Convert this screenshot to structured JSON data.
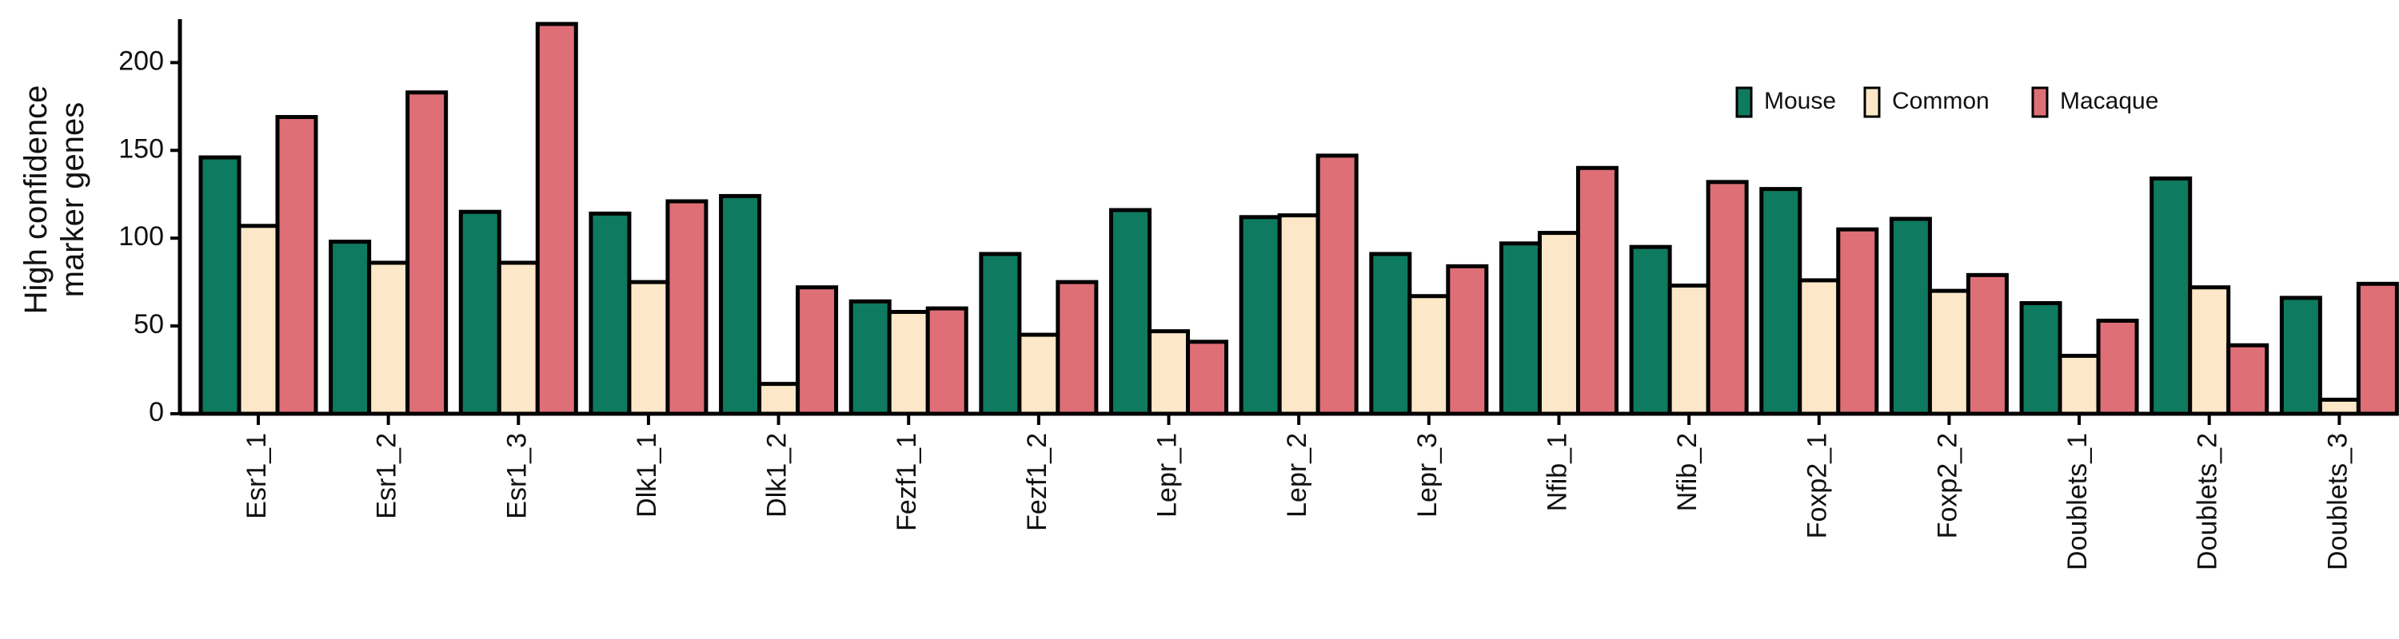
{
  "chart_data": {
    "type": "bar",
    "ylabel": [
      "High confidence",
      "marker genes"
    ],
    "ylim": [
      0,
      222
    ],
    "yticks": [
      0,
      50,
      100,
      150,
      200
    ],
    "categories": [
      "Esr1_1",
      "Esr1_2",
      "Esr1_3",
      "Dlk1_1",
      "Dlk1_2",
      "Fezf1_1",
      "Fezf1_2",
      "Lepr_1",
      "Lepr_2",
      "Lepr_3",
      "Nfib_1",
      "Nfib_2",
      "Foxp2_1",
      "Foxp2_2",
      "Doublets_1",
      "Doublets_2",
      "Doublets_3"
    ],
    "series": [
      {
        "name": "Mouse",
        "color": "#0e7a5f",
        "values": [
          146,
          98,
          115,
          114,
          124,
          64,
          91,
          116,
          112,
          91,
          97,
          95,
          128,
          111,
          63,
          134,
          66
        ]
      },
      {
        "name": "Common",
        "color": "#fce8c8",
        "values": [
          107,
          86,
          86,
          75,
          17,
          58,
          45,
          47,
          113,
          67,
          103,
          73,
          76,
          70,
          33,
          72,
          8
        ]
      },
      {
        "name": "Macaque",
        "color": "#de6f76",
        "values": [
          169,
          183,
          222,
          121,
          72,
          60,
          75,
          41,
          147,
          84,
          140,
          132,
          105,
          79,
          53,
          39,
          74
        ]
      }
    ],
    "legend_position": "top-right",
    "grid": false
  }
}
